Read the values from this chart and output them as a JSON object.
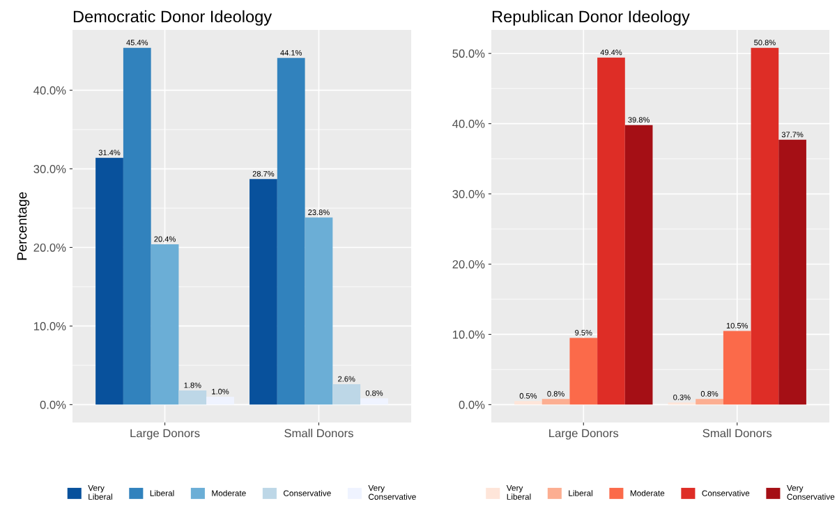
{
  "chart_data": [
    {
      "type": "bar",
      "title": "Democratic Donor Ideology",
      "ylabel": "Percentage",
      "categories": [
        "Large Donors",
        "Small Donors"
      ],
      "series": [
        {
          "name": "Very\nLiberal",
          "color": "#08519c",
          "values": [
            31.4,
            28.7
          ],
          "value_labels": [
            "31.4%",
            "28.7%"
          ]
        },
        {
          "name": "Liberal",
          "color": "#3182bd",
          "values": [
            45.4,
            44.1
          ],
          "value_labels": [
            "45.4%",
            "44.1%"
          ]
        },
        {
          "name": "Moderate",
          "color": "#6baed6",
          "values": [
            20.4,
            23.8
          ],
          "value_labels": [
            "20.4%",
            "23.8%"
          ]
        },
        {
          "name": "Conservative",
          "color": "#bdd7e7",
          "values": [
            1.8,
            2.6
          ],
          "value_labels": [
            "1.8%",
            "2.6%"
          ]
        },
        {
          "name": "Very\nConservative",
          "color": "#eff3ff",
          "values": [
            1.0,
            0.8
          ],
          "value_labels": [
            "1.0%",
            "0.8%"
          ]
        }
      ],
      "ylim": [
        -2.27,
        47.67
      ],
      "yticks": [
        {
          "value": 0,
          "label": "0.0%"
        },
        {
          "value": 10,
          "label": "10.0%"
        },
        {
          "value": 20,
          "label": "20.0%"
        },
        {
          "value": 30,
          "label": "30.0%"
        },
        {
          "value": 40,
          "label": "40.0%"
        }
      ],
      "grid": true,
      "legend": "bottom"
    },
    {
      "type": "bar",
      "title": "Republican Donor Ideology",
      "categories": [
        "Large Donors",
        "Small Donors"
      ],
      "series": [
        {
          "name": "Very\nLiberal",
          "color": "#fee5d9",
          "values": [
            0.5,
            0.3
          ],
          "value_labels": [
            "0.5%",
            "0.3%"
          ]
        },
        {
          "name": "Liberal",
          "color": "#fcae91",
          "values": [
            0.8,
            0.8
          ],
          "value_labels": [
            "0.8%",
            "0.8%"
          ]
        },
        {
          "name": "Moderate",
          "color": "#fb6a4a",
          "values": [
            9.5,
            10.5
          ],
          "value_labels": [
            "9.5%",
            "10.5%"
          ]
        },
        {
          "name": "Conservative",
          "color": "#de2d26",
          "values": [
            49.4,
            50.8
          ],
          "value_labels": [
            "49.4%",
            "50.8%"
          ]
        },
        {
          "name": "Very\nConservative",
          "color": "#a50f15",
          "values": [
            39.8,
            37.7
          ],
          "value_labels": [
            "39.8%",
            "37.7%"
          ]
        }
      ],
      "ylim": [
        -2.54,
        53.34
      ],
      "yticks": [
        {
          "value": 0,
          "label": "0.0%"
        },
        {
          "value": 10,
          "label": "10.0%"
        },
        {
          "value": 20,
          "label": "20.0%"
        },
        {
          "value": 30,
          "label": "30.0%"
        },
        {
          "value": 40,
          "label": "40.0%"
        },
        {
          "value": 50,
          "label": "50.0%"
        }
      ],
      "grid": true,
      "legend": "bottom"
    }
  ]
}
